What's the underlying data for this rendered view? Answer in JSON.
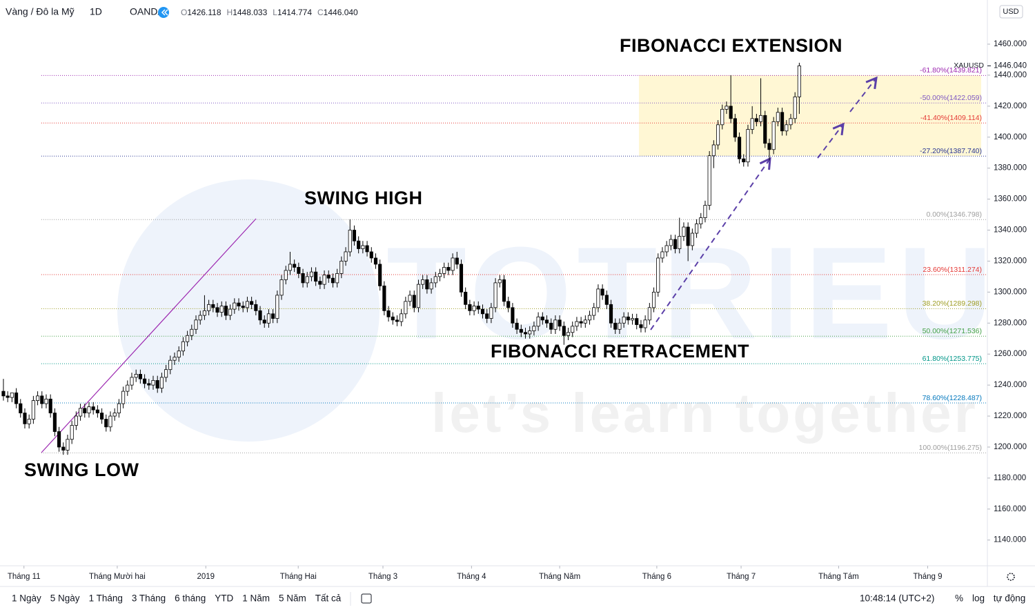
{
  "chart_data": {
    "type": "candlestick",
    "title": "Vàng / Đô la Mỹ",
    "interval": "1D",
    "source": "OANDA",
    "ohlc_legend": [
      {
        "letter": "O",
        "text": "1426.118"
      },
      {
        "letter": "H",
        "text": "1448.033"
      },
      {
        "letter": "L",
        "text": "1414.774"
      },
      {
        "letter": "C",
        "text": "1446.040"
      }
    ],
    "currency": "USD",
    "last_price_label": "1446.040",
    "up_color": "#ffffff",
    "down_color": "#000000",
    "wick_color": "#000000",
    "series": [
      {
        "name": "XAUUSD",
        "open": [
          1236,
          1233,
          1232,
          1235,
          1228,
          1222,
          1215,
          1218,
          1230,
          1233,
          1228,
          1231,
          1222,
          1210,
          1200,
          1198,
          1205,
          1214,
          1220,
          1225,
          1222,
          1226,
          1224,
          1222,
          1218,
          1213,
          1220,
          1222,
          1228,
          1236,
          1240,
          1245,
          1247,
          1244,
          1241,
          1240,
          1243,
          1238,
          1245,
          1250,
          1256,
          1258,
          1262,
          1268,
          1272,
          1276,
          1282,
          1285,
          1288,
          1292,
          1290,
          1287,
          1291,
          1285,
          1289,
          1293,
          1291,
          1290,
          1294,
          1292,
          1288,
          1282,
          1280,
          1286,
          1283,
          1298,
          1308,
          1314,
          1318,
          1316,
          1312,
          1306,
          1310,
          1313,
          1307,
          1305,
          1311,
          1309,
          1306,
          1312,
          1320,
          1326,
          1340,
          1333,
          1328,
          1330,
          1326,
          1322,
          1318,
          1304,
          1288,
          1284,
          1282,
          1281,
          1286,
          1294,
          1298,
          1290,
          1305,
          1308,
          1302,
          1306,
          1310,
          1312,
          1316,
          1314,
          1322,
          1318,
          1300,
          1292,
          1288,
          1291,
          1289,
          1286,
          1283,
          1290,
          1306,
          1308,
          1294,
          1290,
          1280,
          1276,
          1274,
          1273,
          1275,
          1278,
          1284,
          1282,
          1280,
          1276,
          1282,
          1278,
          1272,
          1274,
          1278,
          1281,
          1280,
          1282,
          1285,
          1290,
          1302,
          1298,
          1292,
          1280,
          1276,
          1280,
          1284,
          1282,
          1283,
          1279,
          1277,
          1282,
          1290,
          1300,
          1322,
          1326,
          1330,
          1334,
          1328,
          1336,
          1342,
          1330,
          1338,
          1344,
          1348,
          1356,
          1388,
          1395,
          1408,
          1418,
          1420,
          1412,
          1400,
          1386,
          1384,
          1405,
          1412,
          1410,
          1414,
          1396,
          1392,
          1410,
          1416,
          1404,
          1408,
          1412,
          1426
        ],
        "high": [
          1244,
          1236,
          1235,
          1238,
          1231,
          1225,
          1221,
          1233,
          1236,
          1236,
          1234,
          1234,
          1225,
          1213,
          1203,
          1208,
          1217,
          1223,
          1228,
          1228,
          1229,
          1229,
          1227,
          1225,
          1221,
          1223,
          1225,
          1231,
          1239,
          1243,
          1248,
          1250,
          1250,
          1247,
          1244,
          1246,
          1246,
          1248,
          1253,
          1259,
          1261,
          1265,
          1271,
          1275,
          1279,
          1285,
          1288,
          1298,
          1295,
          1295,
          1293,
          1294,
          1294,
          1292,
          1296,
          1296,
          1294,
          1297,
          1297,
          1295,
          1291,
          1285,
          1289,
          1289,
          1301,
          1311,
          1317,
          1326,
          1321,
          1319,
          1315,
          1313,
          1316,
          1316,
          1310,
          1314,
          1314,
          1312,
          1315,
          1323,
          1329,
          1347,
          1343,
          1336,
          1333,
          1333,
          1329,
          1325,
          1321,
          1307,
          1291,
          1287,
          1285,
          1289,
          1297,
          1301,
          1301,
          1308,
          1311,
          1311,
          1309,
          1313,
          1315,
          1319,
          1319,
          1325,
          1326,
          1321,
          1303,
          1295,
          1294,
          1294,
          1292,
          1289,
          1293,
          1309,
          1311,
          1311,
          1297,
          1293,
          1283,
          1279,
          1277,
          1278,
          1281,
          1287,
          1287,
          1285,
          1283,
          1285,
          1285,
          1281,
          1277,
          1281,
          1284,
          1284,
          1285,
          1288,
          1293,
          1305,
          1305,
          1301,
          1295,
          1283,
          1283,
          1287,
          1287,
          1286,
          1286,
          1282,
          1285,
          1293,
          1303,
          1325,
          1329,
          1333,
          1337,
          1337,
          1348,
          1345,
          1345,
          1341,
          1347,
          1351,
          1359,
          1391,
          1398,
          1411,
          1421,
          1423,
          1440,
          1415,
          1403,
          1389,
          1408,
          1420,
          1415,
          1438,
          1417,
          1399,
          1413,
          1419,
          1419,
          1411,
          1415,
          1429,
          1448
        ],
        "low": [
          1230,
          1229,
          1229,
          1225,
          1219,
          1212,
          1212,
          1215,
          1227,
          1225,
          1225,
          1219,
          1207,
          1197,
          1195,
          1195,
          1202,
          1211,
          1217,
          1219,
          1219,
          1221,
          1219,
          1215,
          1210,
          1210,
          1217,
          1219,
          1225,
          1233,
          1237,
          1242,
          1241,
          1238,
          1237,
          1237,
          1235,
          1235,
          1242,
          1247,
          1253,
          1255,
          1259,
          1265,
          1269,
          1273,
          1279,
          1282,
          1285,
          1287,
          1284,
          1284,
          1282,
          1282,
          1286,
          1288,
          1287,
          1287,
          1289,
          1285,
          1279,
          1277,
          1277,
          1280,
          1280,
          1295,
          1305,
          1311,
          1313,
          1309,
          1303,
          1303,
          1307,
          1304,
          1302,
          1302,
          1306,
          1303,
          1303,
          1309,
          1317,
          1323,
          1330,
          1325,
          1325,
          1323,
          1319,
          1315,
          1301,
          1285,
          1281,
          1279,
          1278,
          1278,
          1283,
          1291,
          1287,
          1287,
          1302,
          1299,
          1299,
          1303,
          1307,
          1309,
          1311,
          1311,
          1315,
          1297,
          1289,
          1285,
          1285,
          1286,
          1283,
          1280,
          1280,
          1287,
          1303,
          1291,
          1287,
          1277,
          1273,
          1271,
          1270,
          1270,
          1272,
          1275,
          1279,
          1277,
          1273,
          1273,
          1275,
          1266,
          1269,
          1271,
          1275,
          1277,
          1277,
          1279,
          1282,
          1287,
          1295,
          1289,
          1277,
          1273,
          1273,
          1277,
          1279,
          1279,
          1276,
          1274,
          1274,
          1279,
          1287,
          1297,
          1319,
          1323,
          1327,
          1325,
          1325,
          1333,
          1320,
          1327,
          1335,
          1341,
          1345,
          1353,
          1380,
          1392,
          1405,
          1415,
          1409,
          1397,
          1383,
          1381,
          1381,
          1402,
          1407,
          1407,
          1393,
          1385,
          1389,
          1407,
          1401,
          1401,
          1405,
          1409,
          1415
        ],
        "close": [
          1233,
          1232,
          1235,
          1228,
          1222,
          1215,
          1218,
          1230,
          1233,
          1228,
          1231,
          1222,
          1210,
          1200,
          1198,
          1205,
          1214,
          1220,
          1225,
          1222,
          1226,
          1224,
          1222,
          1218,
          1213,
          1220,
          1222,
          1228,
          1236,
          1240,
          1245,
          1247,
          1244,
          1241,
          1240,
          1243,
          1238,
          1245,
          1250,
          1256,
          1258,
          1262,
          1268,
          1272,
          1276,
          1282,
          1285,
          1288,
          1292,
          1290,
          1287,
          1291,
          1285,
          1289,
          1293,
          1291,
          1290,
          1294,
          1292,
          1288,
          1282,
          1280,
          1286,
          1283,
          1298,
          1308,
          1314,
          1318,
          1316,
          1312,
          1306,
          1310,
          1313,
          1307,
          1305,
          1311,
          1309,
          1306,
          1312,
          1320,
          1326,
          1340,
          1333,
          1328,
          1330,
          1326,
          1322,
          1318,
          1304,
          1288,
          1284,
          1282,
          1281,
          1286,
          1294,
          1298,
          1290,
          1305,
          1308,
          1302,
          1306,
          1310,
          1312,
          1316,
          1314,
          1322,
          1318,
          1300,
          1292,
          1288,
          1291,
          1289,
          1286,
          1283,
          1290,
          1306,
          1308,
          1294,
          1290,
          1280,
          1276,
          1274,
          1273,
          1275,
          1278,
          1284,
          1282,
          1280,
          1276,
          1282,
          1278,
          1272,
          1274,
          1278,
          1281,
          1280,
          1282,
          1285,
          1290,
          1302,
          1298,
          1292,
          1280,
          1276,
          1280,
          1284,
          1282,
          1283,
          1279,
          1277,
          1282,
          1290,
          1300,
          1322,
          1326,
          1330,
          1334,
          1328,
          1336,
          1342,
          1330,
          1338,
          1344,
          1348,
          1356,
          1388,
          1395,
          1408,
          1418,
          1420,
          1412,
          1400,
          1386,
          1384,
          1405,
          1412,
          1410,
          1414,
          1396,
          1392,
          1410,
          1416,
          1404,
          1408,
          1412,
          1426,
          1446
        ]
      }
    ],
    "xlim": [
      -0.8,
      229.8
    ],
    "xticks": [
      {
        "value": 4.8,
        "label": "Tháng 11"
      },
      {
        "value": 26.6,
        "label": "Tháng Mười hai"
      },
      {
        "value": 47.3,
        "label": "2019"
      },
      {
        "value": 68.9,
        "label": "Tháng Hai"
      },
      {
        "value": 88.7,
        "label": "Tháng 3"
      },
      {
        "value": 109.4,
        "label": "Tháng 4"
      },
      {
        "value": 130,
        "label": "Tháng Năm"
      },
      {
        "value": 152.7,
        "label": "Tháng 6"
      },
      {
        "value": 172.4,
        "label": "Tháng 7"
      },
      {
        "value": 195.2,
        "label": "Tháng Tám"
      },
      {
        "value": 216,
        "label": "Tháng 9"
      }
    ],
    "ylim": [
      1123.4,
      1488.5
    ],
    "yticks": [
      {
        "value": 1140,
        "label": "1140.000"
      },
      {
        "value": 1160,
        "label": "1160.000"
      },
      {
        "value": 1180,
        "label": "1180.000"
      },
      {
        "value": 1200,
        "label": "1200.000"
      },
      {
        "value": 1220,
        "label": "1220.000"
      },
      {
        "value": 1240,
        "label": "1240.000"
      },
      {
        "value": 1260,
        "label": "1260.000"
      },
      {
        "value": 1280,
        "label": "1280.000"
      },
      {
        "value": 1300,
        "label": "1300.000"
      },
      {
        "value": 1320,
        "label": "1320.000"
      },
      {
        "value": 1340,
        "label": "1340.000"
      },
      {
        "value": 1360,
        "label": "1360.000"
      },
      {
        "value": 1380,
        "label": "1380.000"
      },
      {
        "value": 1400,
        "label": "1400.000"
      },
      {
        "value": 1420,
        "label": "1420.000"
      },
      {
        "value": 1440,
        "label": "1440.000"
      },
      {
        "value": 1460,
        "label": "1460.000"
      }
    ],
    "grid": false,
    "fib_levels": [
      {
        "value": 1439.821,
        "label": "-61.80%(1439.821)",
        "color": "#9c27b0"
      },
      {
        "value": 1422.059,
        "label": "-50.00%(1422.059)",
        "color": "#7e57c2"
      },
      {
        "value": 1409.114,
        "label": "-41.40%(1409.114)",
        "color": "#e53935"
      },
      {
        "value": 1387.74,
        "label": "-27.20%(1387.740)",
        "color": "#283593"
      },
      {
        "value": 1346.798,
        "label": "0.00%(1346.798)",
        "color": "#9e9e9e"
      },
      {
        "value": 1311.274,
        "label": "23.60%(1311.274)",
        "color": "#e53935"
      },
      {
        "value": 1289.298,
        "label": "38.20%(1289.298)",
        "color": "#9e9d24"
      },
      {
        "value": 1271.536,
        "label": "50.00%(1271.536)",
        "color": "#43a047"
      },
      {
        "value": 1253.775,
        "label": "61.80%(1253.775)",
        "color": "#009688"
      },
      {
        "value": 1228.487,
        "label": "78.60%(1228.487)",
        "color": "#0277bd"
      },
      {
        "value": 1196.275,
        "label": "100.00%(1196.275)",
        "color": "#9e9e9e"
      }
    ],
    "annotations": [
      "FIBONACCI EXTENSION",
      "SWING  HIGH",
      "FIBONACCI RETRACEMENT",
      "SWING  LOW"
    ],
    "watermark": [
      "TOTRIEU",
      "let’s learn together"
    ]
  },
  "toolbar": {
    "ranges": [
      "1 Ngày",
      "5 Ngày",
      "1 Tháng",
      "3 Tháng",
      "6 tháng",
      "YTD",
      "1 Năm",
      "5 Năm",
      "Tất cả"
    ],
    "clock": "10:48:14 (UTC+2)",
    "options": [
      "%",
      "log",
      "tự động"
    ]
  }
}
